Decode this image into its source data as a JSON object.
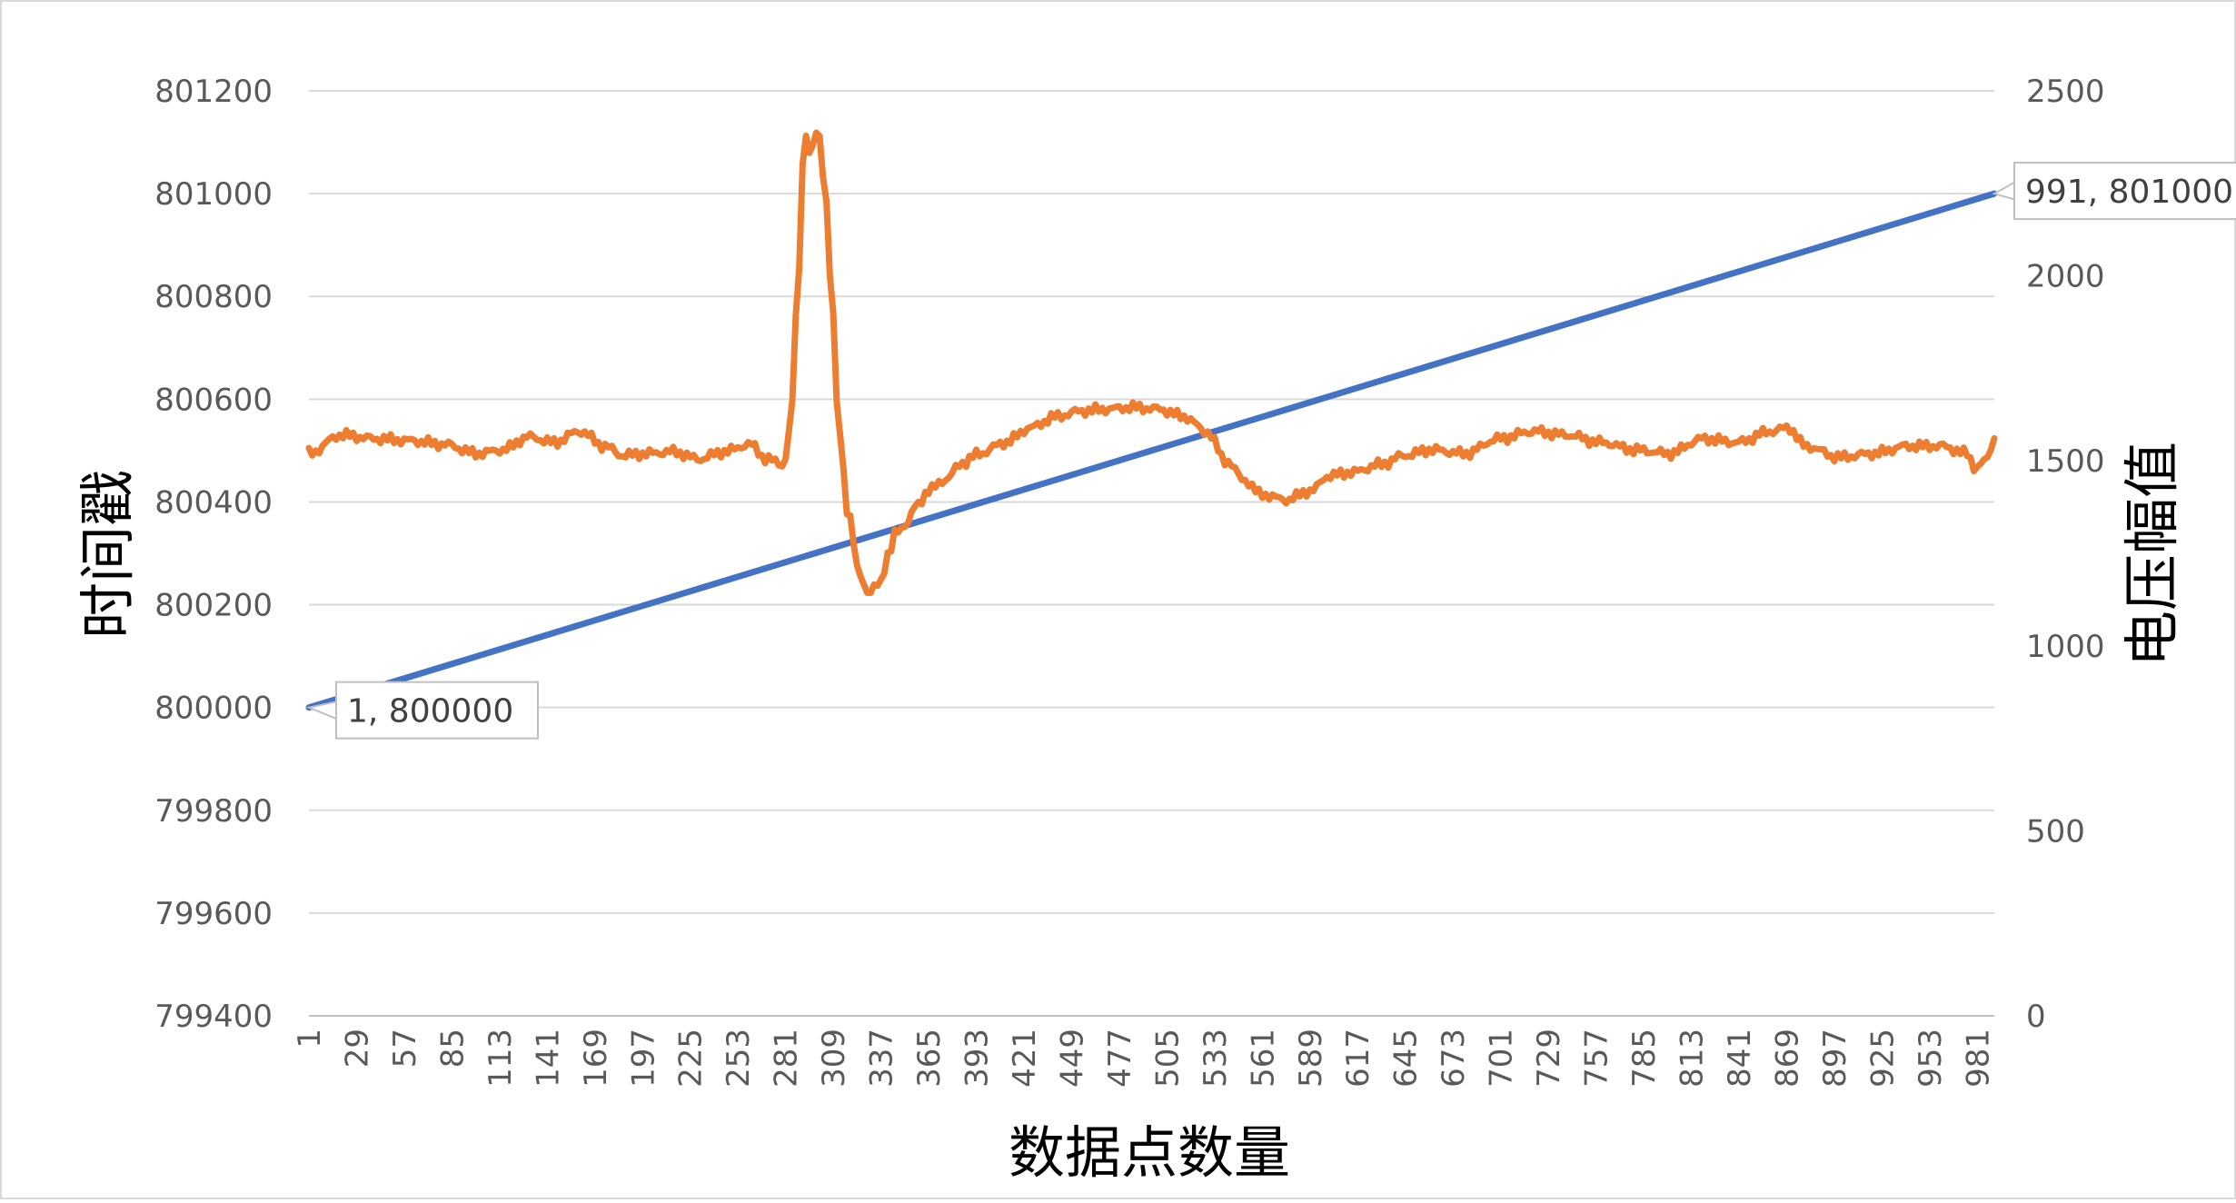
{
  "chart_data": {
    "type": "line",
    "title": "",
    "xlabel": "数据点数量",
    "ylabel": "时间戳",
    "y2label": "电压幅值",
    "x_range": [
      1,
      991
    ],
    "x_tick_labels": [
      "1",
      "29",
      "57",
      "85",
      "113",
      "141",
      "169",
      "197",
      "225",
      "253",
      "281",
      "309",
      "337",
      "365",
      "393",
      "421",
      "449",
      "477",
      "505",
      "533",
      "561",
      "589",
      "617",
      "645",
      "673",
      "701",
      "729",
      "757",
      "785",
      "813",
      "841",
      "869",
      "897",
      "925",
      "953",
      "981"
    ],
    "ylim": [
      799400,
      801200
    ],
    "y_ticks": [
      "799400",
      "799600",
      "799800",
      "800000",
      "800200",
      "800400",
      "800600",
      "800800",
      "801000",
      "801200"
    ],
    "y2lim": [
      0,
      2500
    ],
    "y2_ticks": [
      "0",
      "500",
      "1000",
      "1500",
      "2000",
      "2500"
    ],
    "grid": true,
    "legend": "none",
    "series": [
      {
        "axis": "left",
        "color": "#4472C4",
        "x": [
          1,
          991
        ],
        "y": [
          800000,
          801000
        ],
        "labels": [
          {
            "x": 1,
            "y": 800000,
            "text": "1, 800000"
          },
          {
            "x": 991,
            "y": 801000,
            "text": "991, 801000"
          }
        ]
      },
      {
        "axis": "right",
        "color": "#ED7D31",
        "x": [
          1,
          20,
          40,
          60,
          80,
          100,
          115,
          130,
          145,
          160,
          175,
          185,
          200,
          215,
          230,
          245,
          260,
          270,
          280,
          284,
          288,
          292,
          296,
          300,
          304,
          308,
          312,
          318,
          324,
          330,
          336,
          342,
          346,
          352,
          358,
          365,
          375,
          385,
          395,
          410,
          425,
          440,
          455,
          470,
          485,
          500,
          515,
          528,
          540,
          550,
          560,
          575,
          590,
          600,
          615,
          630,
          645,
          660,
          680,
          700,
          720,
          740,
          760,
          780,
          800,
          820,
          840,
          860,
          870,
          880,
          900,
          920,
          940,
          960,
          975,
          980,
          986,
          991
        ],
        "y": [
          1520,
          1570,
          1560,
          1555,
          1545,
          1520,
          1530,
          1565,
          1550,
          1580,
          1540,
          1515,
          1520,
          1525,
          1505,
          1525,
          1545,
          1505,
          1490,
          1600,
          1950,
          2380,
          2330,
          2400,
          2250,
          1950,
          1600,
          1350,
          1200,
          1140,
          1170,
          1250,
          1310,
          1330,
          1380,
          1420,
          1450,
          1495,
          1520,
          1550,
          1590,
          1620,
          1635,
          1640,
          1645,
          1640,
          1620,
          1580,
          1500,
          1450,
          1410,
          1395,
          1420,
          1460,
          1470,
          1490,
          1515,
          1530,
          1520,
          1560,
          1580,
          1570,
          1550,
          1530,
          1520,
          1560,
          1550,
          1580,
          1590,
          1540,
          1510,
          1520,
          1540,
          1540,
          1520,
          1480,
          1500,
          1560
        ]
      }
    ]
  }
}
